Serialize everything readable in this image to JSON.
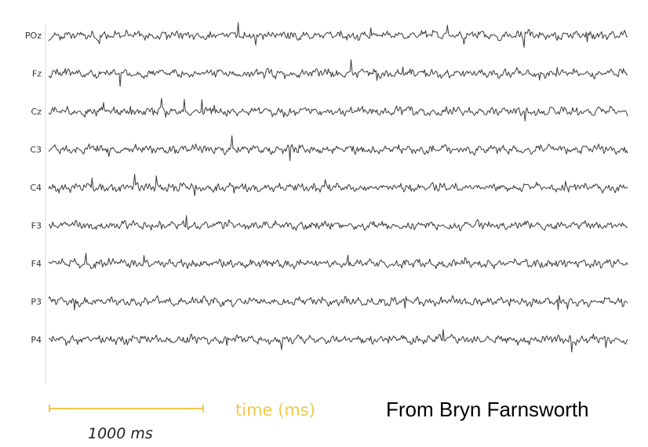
{
  "chart_data": {
    "type": "line",
    "series": [
      {
        "name": "POz"
      },
      {
        "name": "Fz"
      },
      {
        "name": "Cz"
      },
      {
        "name": "C3"
      },
      {
        "name": "C4"
      },
      {
        "name": "F3"
      },
      {
        "name": "F4"
      },
      {
        "name": "P3"
      },
      {
        "name": "P4"
      }
    ],
    "scale_bar_label": "1000 ms",
    "xlabel": "time (ms)",
    "ylabel": "",
    "grid": false,
    "legend": "none"
  },
  "credit": "From Bryn Farnsworth",
  "colors": {
    "trace": "#3a3a3a",
    "scale_bar": "#f2c84b",
    "axis_label": "#f2c84b",
    "divider": "#d9d9d9"
  }
}
